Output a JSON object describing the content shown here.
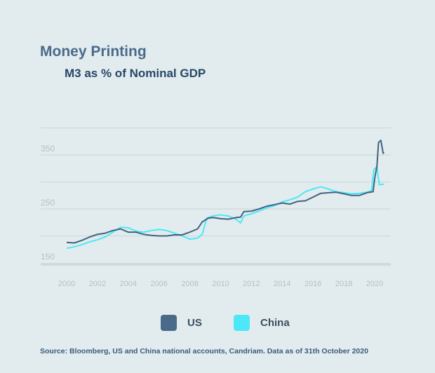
{
  "chart_data": {
    "type": "line",
    "title": "Money Printing",
    "subtitle": "M3 as % of Nominal GDP",
    "xlabel": "",
    "ylabel": "",
    "xlim": [
      1999.9,
      2020.8
    ],
    "ylim": [
      145,
      400
    ],
    "x_ticks": [
      "2000",
      "2002",
      "2004",
      "2006",
      "2008",
      "2010",
      "2012",
      "2014",
      "2016",
      "2018",
      "2020"
    ],
    "y_ticks": [
      150,
      250,
      350
    ],
    "gridlines": [
      150,
      200,
      250,
      300,
      350,
      400
    ],
    "grid": true,
    "legend_placement": "bottom",
    "series": [
      {
        "name": "US",
        "color": "#44627f",
        "x": [
          2000,
          2000.5,
          2001,
          2001.5,
          2002,
          2002.5,
          2003,
          2003.5,
          2004,
          2004.5,
          2005,
          2005.5,
          2006,
          2006.5,
          2007,
          2007.5,
          2008,
          2008.5,
          2008.8,
          2009.2,
          2009.5,
          2010,
          2010.5,
          2011,
          2011.3,
          2011.5,
          2012,
          2012.5,
          2013,
          2013.5,
          2014,
          2014.5,
          2015,
          2015.5,
          2016,
          2016.5,
          2017,
          2017.5,
          2018,
          2018.5,
          2019,
          2019.5,
          2019.9,
          2020.0,
          2020.15,
          2020.25,
          2020.4,
          2020.55,
          2020.6
        ],
        "y": [
          188,
          187,
          192,
          198,
          203,
          205,
          210,
          213,
          207,
          207,
          203,
          201,
          200,
          200,
          202,
          202,
          207,
          213,
          226,
          233,
          234,
          232,
          231,
          234,
          235,
          245,
          246,
          250,
          255,
          258,
          261,
          259,
          264,
          265,
          272,
          279,
          280,
          281,
          278,
          275,
          275,
          280,
          282,
          306,
          330,
          373,
          377,
          353,
          355
        ]
      },
      {
        "name": "China",
        "color": "#4de8f5",
        "x": [
          2000,
          2000.5,
          2001,
          2001.5,
          2002,
          2002.5,
          2003,
          2003.5,
          2004,
          2004.5,
          2005,
          2005.5,
          2006,
          2006.5,
          2007,
          2007.5,
          2008,
          2008.5,
          2008.8,
          2009.1,
          2009.5,
          2010,
          2010.5,
          2011,
          2011.3,
          2011.5,
          2012,
          2012.5,
          2013,
          2013.5,
          2014,
          2014.5,
          2015,
          2015.5,
          2016,
          2016.5,
          2017,
          2017.5,
          2018,
          2018.5,
          2019,
          2019.5,
          2019.8,
          2019.95,
          2020.15,
          2020.3,
          2020.6
        ],
        "y": [
          177,
          180,
          184,
          189,
          193,
          198,
          207,
          216,
          215,
          209,
          207,
          210,
          212,
          210,
          205,
          200,
          194,
          196,
          203,
          233,
          237,
          239,
          237,
          231,
          224,
          237,
          241,
          246,
          252,
          256,
          263,
          267,
          272,
          282,
          287,
          291,
          287,
          282,
          280,
          278,
          279,
          281,
          284,
          323,
          328,
          295,
          296
        ]
      }
    ],
    "source": "Source: Bloomberg, US and China national accounts, Candriam. Data as of 31th October 2020"
  },
  "legend": [
    {
      "label": "US",
      "color": "#4a6a8a"
    },
    {
      "label": "China",
      "color": "#4de8f8"
    }
  ]
}
